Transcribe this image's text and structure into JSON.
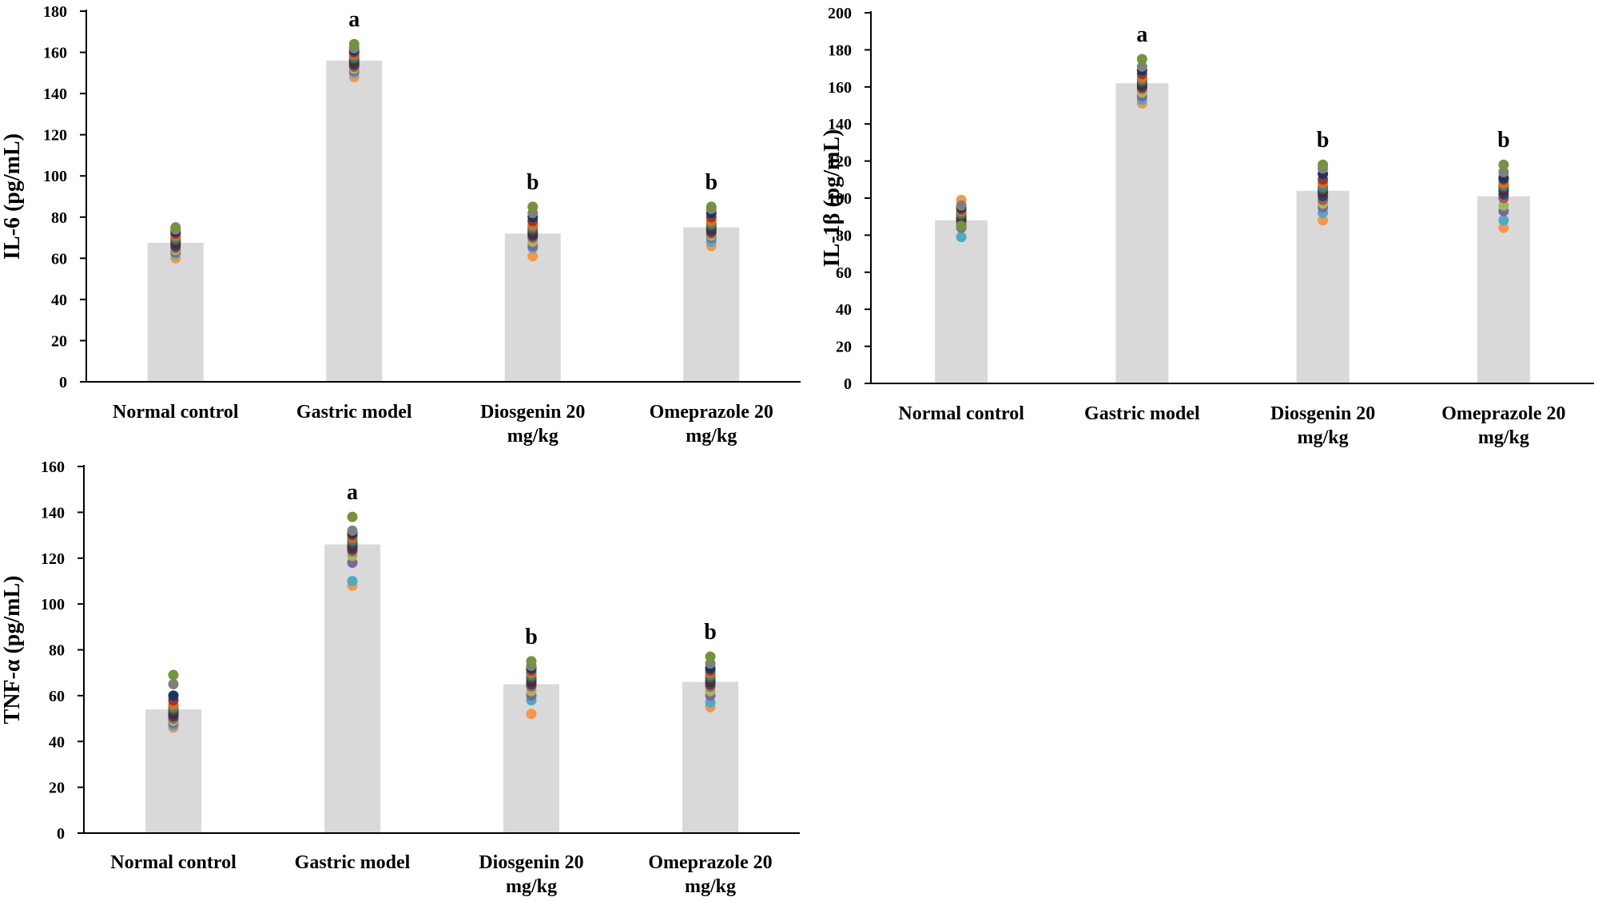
{
  "palette": {
    "bar": "#d9d9d9",
    "axis": "#000000",
    "dots": [
      "#f79646",
      "#4bacc6",
      "#8064a2",
      "#9bbb59",
      "#c0504d",
      "#1f497d",
      "#632423",
      "#3f3151",
      "#4f6228",
      "#31859c",
      "#e46c0a",
      "#953735",
      "#17375e",
      "#7f7f7f",
      "#76923c"
    ]
  },
  "chart_data": [
    {
      "id": "il6",
      "type": "bar",
      "title": "",
      "xlabel": "",
      "ylabel": "IL-6 (pg/mL)",
      "ylim": [
        0,
        180
      ],
      "yticks": [
        "0",
        "20",
        "40",
        "60",
        "80",
        "100",
        "120",
        "140",
        "160",
        "180"
      ],
      "categories": [
        [
          "Normal control"
        ],
        [
          "Gastric model"
        ],
        [
          "Diosgenin 20",
          "mg/kg"
        ],
        [
          "Omeprazole 20",
          "mg/kg"
        ]
      ],
      "values": [
        67.5,
        156,
        72,
        75
      ],
      "significance": [
        "",
        "a",
        "b",
        "b"
      ],
      "points": [
        [
          60,
          62,
          63,
          64,
          65,
          66,
          67,
          68,
          69,
          70,
          71,
          72,
          73,
          74,
          75
        ],
        [
          148,
          150,
          151,
          152,
          153,
          154,
          155,
          156,
          157,
          158,
          159,
          160,
          161,
          162,
          164
        ],
        [
          61,
          65,
          66,
          68,
          70,
          71,
          72,
          73,
          74,
          75,
          76,
          78,
          80,
          82,
          85
        ],
        [
          66,
          68,
          70,
          71,
          72,
          73,
          74,
          75,
          76,
          77,
          78,
          80,
          82,
          84,
          85
        ]
      ]
    },
    {
      "id": "il1b",
      "type": "bar",
      "title": "",
      "xlabel": "",
      "ylabel": "IL-1β (pg/mL)",
      "ylim": [
        0,
        200
      ],
      "yticks": [
        "0",
        "20",
        "40",
        "60",
        "80",
        "100",
        "120",
        "140",
        "160",
        "180",
        "200"
      ],
      "categories": [
        [
          "Normal control"
        ],
        [
          "Gastric model"
        ],
        [
          "Diosgenin 20",
          "mg/kg"
        ],
        [
          "Omeprazole 20",
          "mg/kg"
        ]
      ],
      "values": [
        88,
        162,
        104,
        101
      ],
      "significance": [
        "",
        "a",
        "b",
        "b"
      ],
      "points": [
        [
          99,
          79,
          84,
          86,
          87,
          88,
          89,
          90,
          91,
          92,
          93,
          94,
          95,
          96,
          85
        ],
        [
          151,
          153,
          155,
          157,
          159,
          160,
          161,
          162,
          163,
          164,
          165,
          167,
          169,
          171,
          175
        ],
        [
          88,
          92,
          95,
          97,
          99,
          101,
          103,
          104,
          105,
          106,
          108,
          110,
          113,
          116,
          118
        ],
        [
          84,
          88,
          93,
          96,
          100,
          102,
          104,
          105,
          106,
          107,
          108,
          110,
          111,
          114,
          118
        ]
      ]
    },
    {
      "id": "tnfa",
      "type": "bar",
      "title": "",
      "xlabel": "",
      "ylabel": "TNF-α (pg/mL)",
      "ylim": [
        0,
        160
      ],
      "yticks": [
        "0",
        "20",
        "40",
        "60",
        "80",
        "100",
        "120",
        "140",
        "160"
      ],
      "categories": [
        [
          "Normal control"
        ],
        [
          "Gastric model"
        ],
        [
          "Diosgenin 20",
          "mg/kg"
        ],
        [
          "Omeprazole 20",
          "mg/kg"
        ]
      ],
      "values": [
        54,
        126,
        65,
        66
      ],
      "significance": [
        "",
        "a",
        "b",
        "b"
      ],
      "points": [
        [
          46,
          47,
          48,
          49,
          50,
          51,
          52,
          53,
          54,
          55,
          56,
          58,
          60,
          65,
          69
        ],
        [
          108,
          110,
          118,
          121,
          123,
          124,
          125,
          126,
          127,
          128,
          129,
          130,
          131,
          132,
          138
        ],
        [
          52,
          58,
          60,
          62,
          64,
          65,
          66,
          67,
          68,
          69,
          70,
          71,
          72,
          73,
          75
        ],
        [
          55,
          57,
          60,
          62,
          64,
          65,
          66,
          67,
          68,
          69,
          70,
          71,
          72,
          74,
          77
        ]
      ]
    }
  ]
}
